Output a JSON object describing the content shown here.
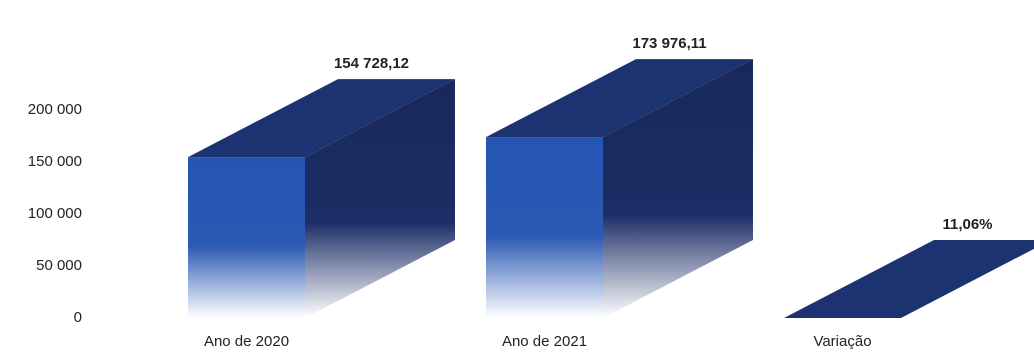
{
  "chart_data": {
    "type": "bar3d",
    "categories": [
      "Ano de 2020",
      "Ano de 2021",
      "Variação"
    ],
    "values": [
      154728.12,
      173976.11,
      11.06
    ],
    "value_labels": [
      "154 728,12",
      "173 976,11",
      "11,06%"
    ],
    "color": "#1d3270",
    "ylim": [
      0,
      200000
    ],
    "yticks": [
      0,
      {
        "value": 50000,
        "label": "50 000"
      },
      {
        "value": 100000,
        "label": "100 000"
      },
      {
        "value": 150000,
        "label": "150 000"
      },
      {
        "value": 200000,
        "label": "200 000"
      }
    ]
  }
}
